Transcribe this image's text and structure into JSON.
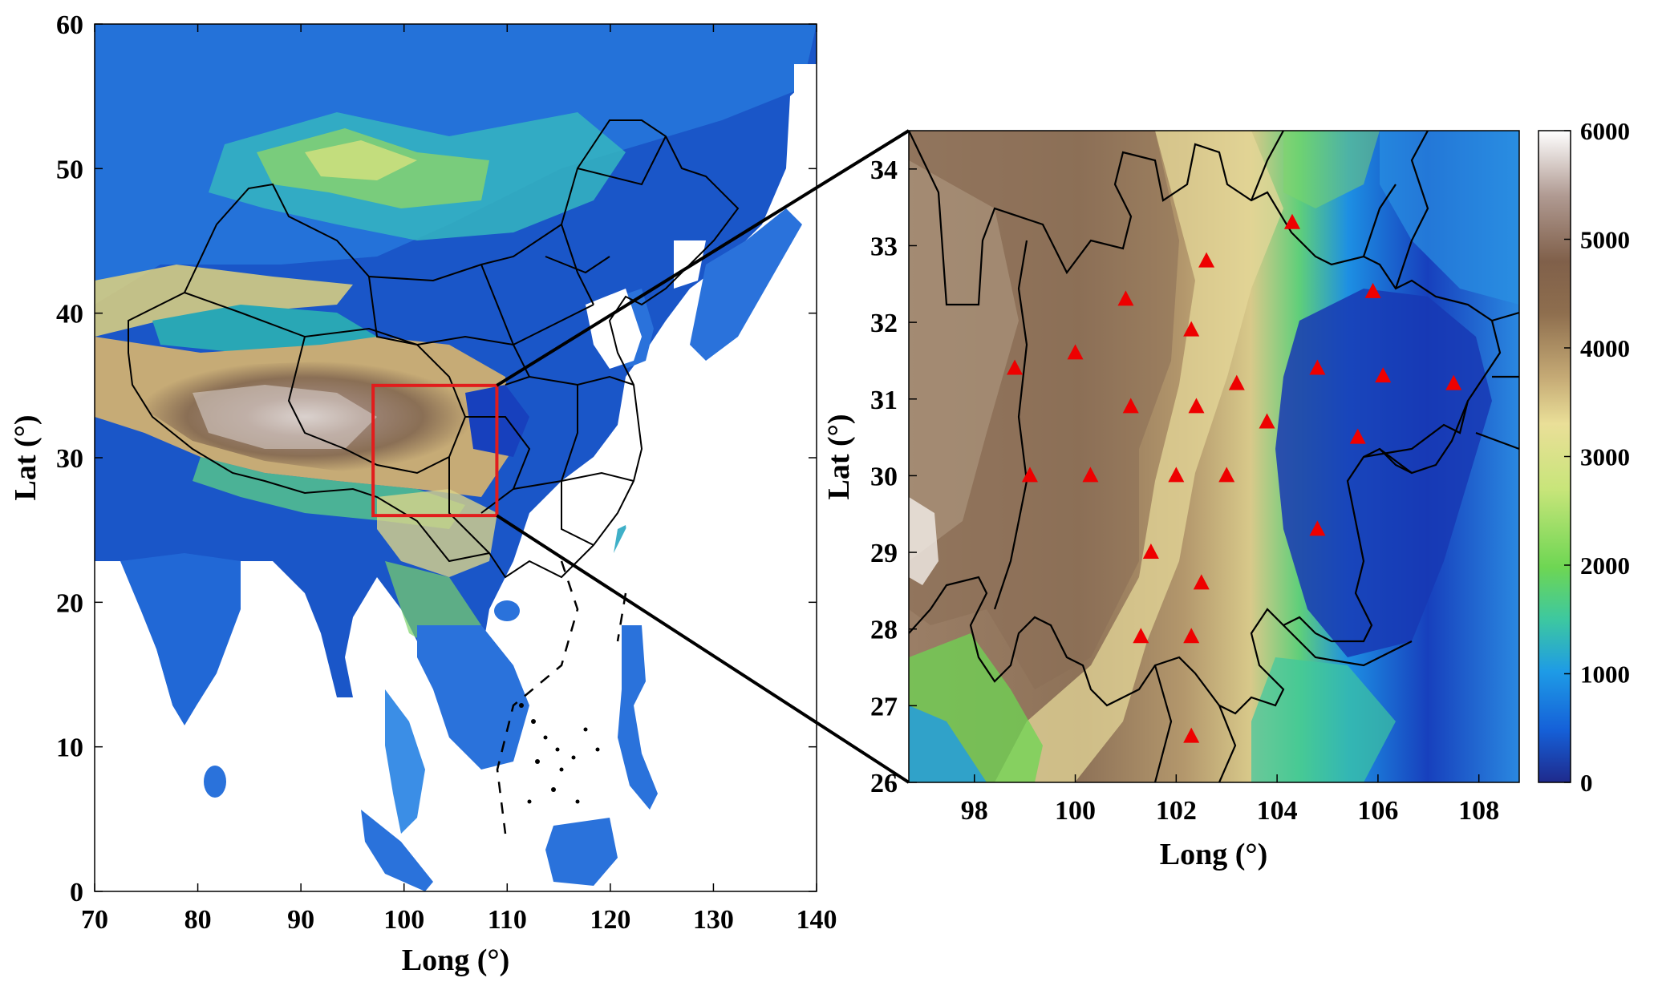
{
  "left_map": {
    "xlabel": "Long (°)",
    "ylabel": "Lat (°)",
    "xticks": [
      "70",
      "80",
      "90",
      "100",
      "110",
      "120",
      "130",
      "140"
    ],
    "yticks": [
      "0",
      "10",
      "20",
      "30",
      "40",
      "50",
      "60"
    ],
    "xlim": [
      70,
      140
    ],
    "ylim": [
      0,
      60
    ],
    "highlight_box": {
      "lon": [
        97,
        109
      ],
      "lat": [
        26,
        35
      ],
      "color": "#e21c1c"
    }
  },
  "right_map": {
    "xlabel": "Long (°)",
    "ylabel": "Lat (°)",
    "xticks": [
      "98",
      "100",
      "102",
      "104",
      "106",
      "108"
    ],
    "yticks": [
      "26",
      "27",
      "28",
      "29",
      "30",
      "31",
      "32",
      "33",
      "34"
    ],
    "xlim": [
      96.7,
      108.8
    ],
    "ylim": [
      26,
      34.5
    ],
    "station_color": "#ee0000",
    "stations": [
      {
        "lon": 104.3,
        "lat": 33.3
      },
      {
        "lon": 102.6,
        "lat": 32.8
      },
      {
        "lon": 105.9,
        "lat": 32.4
      },
      {
        "lon": 101.0,
        "lat": 32.3
      },
      {
        "lon": 102.3,
        "lat": 31.9
      },
      {
        "lon": 100.0,
        "lat": 31.6
      },
      {
        "lon": 98.8,
        "lat": 31.4
      },
      {
        "lon": 104.8,
        "lat": 31.4
      },
      {
        "lon": 106.1,
        "lat": 31.3
      },
      {
        "lon": 107.5,
        "lat": 31.2
      },
      {
        "lon": 103.2,
        "lat": 31.2
      },
      {
        "lon": 101.1,
        "lat": 30.9
      },
      {
        "lon": 102.4,
        "lat": 30.9
      },
      {
        "lon": 103.8,
        "lat": 30.7
      },
      {
        "lon": 105.6,
        "lat": 30.5
      },
      {
        "lon": 99.1,
        "lat": 30.0
      },
      {
        "lon": 100.3,
        "lat": 30.0
      },
      {
        "lon": 102.0,
        "lat": 30.0
      },
      {
        "lon": 103.0,
        "lat": 30.0
      },
      {
        "lon": 104.8,
        "lat": 29.3
      },
      {
        "lon": 101.5,
        "lat": 29.0
      },
      {
        "lon": 102.5,
        "lat": 28.6
      },
      {
        "lon": 101.3,
        "lat": 27.9
      },
      {
        "lon": 102.3,
        "lat": 27.9
      },
      {
        "lon": 102.3,
        "lat": 26.6
      }
    ]
  },
  "colorbar": {
    "ticks": [
      "0",
      "1000",
      "2000",
      "3000",
      "4000",
      "5000",
      "6000"
    ],
    "range": [
      0,
      6000
    ],
    "colors": [
      "#1f2a8c",
      "#1560d8",
      "#1e9be6",
      "#3dc8a0",
      "#6ed653",
      "#c8e57a",
      "#eadf98",
      "#c6ab76",
      "#8e6e4e",
      "#80604a",
      "#b09a92",
      "#ffffff"
    ]
  }
}
